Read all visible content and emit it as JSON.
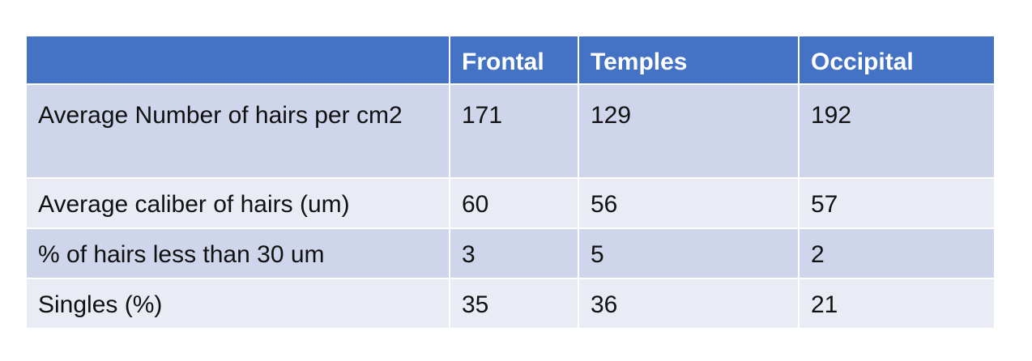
{
  "table": {
    "headers": [
      "",
      "Frontal",
      "Temples",
      "Occipital"
    ],
    "rows": [
      {
        "label": "Average Number of hairs per cm2",
        "values": [
          "171",
          "129",
          "192"
        ]
      },
      {
        "label": "Average caliber of hairs (um)",
        "values": [
          "60",
          "56",
          "57"
        ]
      },
      {
        "label": "% of hairs less than 30 um",
        "values": [
          "3",
          "5",
          "2"
        ]
      },
      {
        "label": "Singles (%)",
        "values": [
          "35",
          "36",
          "21"
        ]
      }
    ],
    "colors": {
      "header_bg": "#4472c4",
      "row_band_dark": "#cfd5ea",
      "row_band_light": "#e9ebf5",
      "header_text": "#ffffff",
      "body_text": "#111111"
    }
  }
}
